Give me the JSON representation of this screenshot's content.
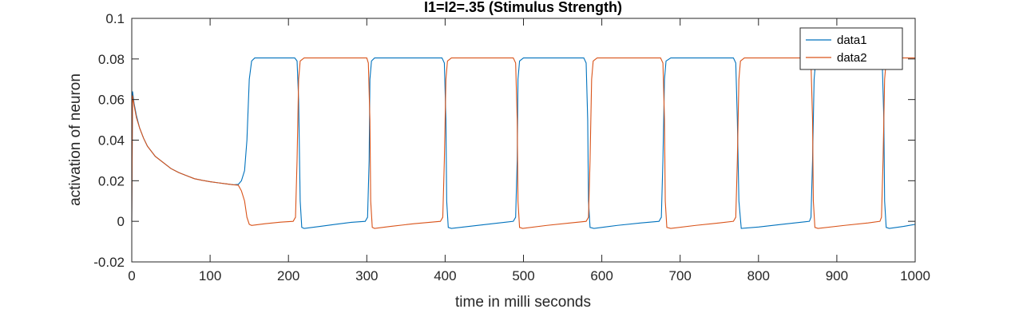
{
  "chart_data": {
    "type": "line",
    "title": "I1=I2=.35 (Stimulus Strength)",
    "xlabel": "time in milli seconds",
    "ylabel": "activation of neuron",
    "xlim": [
      0,
      1000
    ],
    "ylim": [
      -0.02,
      0.1
    ],
    "x_ticks": [
      0,
      100,
      200,
      300,
      400,
      500,
      600,
      700,
      800,
      900,
      1000
    ],
    "y_ticks": [
      -0.02,
      0,
      0.02,
      0.04,
      0.06,
      0.08,
      0.1
    ],
    "x_tick_labels": [
      "0",
      "100",
      "200",
      "300",
      "400",
      "500",
      "600",
      "700",
      "800",
      "900",
      "1000"
    ],
    "y_tick_labels": [
      "-0.02",
      "0",
      "0.02",
      "0.04",
      "0.06",
      "0.08",
      "0.1"
    ],
    "grid": false,
    "legend_position": "top-right",
    "series": [
      {
        "name": "data1",
        "color": "#0072BD",
        "points": [
          [
            0,
            0
          ],
          [
            1,
            0.064
          ],
          [
            3,
            0.058
          ],
          [
            6,
            0.052
          ],
          [
            10,
            0.046
          ],
          [
            15,
            0.041
          ],
          [
            20,
            0.037
          ],
          [
            30,
            0.032
          ],
          [
            40,
            0.029
          ],
          [
            50,
            0.026
          ],
          [
            60,
            0.024
          ],
          [
            70,
            0.0225
          ],
          [
            80,
            0.021
          ],
          [
            90,
            0.0202
          ],
          [
            100,
            0.0195
          ],
          [
            110,
            0.019
          ],
          [
            120,
            0.0185
          ],
          [
            130,
            0.018
          ],
          [
            136,
            0.0182
          ],
          [
            140,
            0.02
          ],
          [
            144,
            0.025
          ],
          [
            147,
            0.04
          ],
          [
            150,
            0.07
          ],
          [
            153,
            0.079
          ],
          [
            157,
            0.0805
          ],
          [
            208,
            0.0805
          ],
          [
            211,
            0.079
          ],
          [
            213,
            0.06
          ],
          [
            215,
            0.01
          ],
          [
            217,
            -0.003
          ],
          [
            220,
            -0.0035
          ],
          [
            240,
            -0.0025
          ],
          [
            260,
            -0.0015
          ],
          [
            280,
            -0.0005
          ],
          [
            298,
            0
          ],
          [
            301,
            0.002
          ],
          [
            303,
            0.03
          ],
          [
            304,
            0.07
          ],
          [
            306,
            0.079
          ],
          [
            310,
            0.0805
          ],
          [
            396,
            0.0805
          ],
          [
            399,
            0.078
          ],
          [
            401,
            0.05
          ],
          [
            402,
            0.01
          ],
          [
            404,
            -0.003
          ],
          [
            408,
            -0.0035
          ],
          [
            430,
            -0.0025
          ],
          [
            460,
            -0.0012
          ],
          [
            487,
            0
          ],
          [
            490,
            0.002
          ],
          [
            492,
            0.03
          ],
          [
            493,
            0.07
          ],
          [
            495,
            0.079
          ],
          [
            500,
            0.0805
          ],
          [
            577,
            0.0805
          ],
          [
            580,
            0.078
          ],
          [
            582,
            0.05
          ],
          [
            583,
            0.01
          ],
          [
            585,
            -0.003
          ],
          [
            590,
            -0.0035
          ],
          [
            620,
            -0.002
          ],
          [
            650,
            -0.0008
          ],
          [
            673,
            0
          ],
          [
            676,
            0.002
          ],
          [
            678,
            0.03
          ],
          [
            680,
            0.07
          ],
          [
            682,
            0.079
          ],
          [
            688,
            0.0805
          ],
          [
            768,
            0.0805
          ],
          [
            771,
            0.078
          ],
          [
            773,
            0.05
          ],
          [
            775,
            0.01
          ],
          [
            778,
            -0.0035
          ],
          [
            800,
            -0.0028
          ],
          [
            830,
            -0.0015
          ],
          [
            860,
            -0.0002
          ],
          [
            865,
            0
          ],
          [
            867,
            0.002
          ],
          [
            869,
            0.03
          ],
          [
            871,
            0.07
          ],
          [
            873,
            0.079
          ],
          [
            880,
            0.0805
          ],
          [
            955,
            0.0805
          ],
          [
            958,
            0.078
          ],
          [
            960,
            0.05
          ],
          [
            961,
            0.01
          ],
          [
            963,
            -0.003
          ],
          [
            967,
            -0.0035
          ],
          [
            985,
            -0.0025
          ],
          [
            1000,
            -0.0015
          ]
        ]
      },
      {
        "name": "data2",
        "color": "#D95319",
        "points": [
          [
            0,
            0
          ],
          [
            1,
            0.062
          ],
          [
            3,
            0.057
          ],
          [
            6,
            0.051
          ],
          [
            10,
            0.046
          ],
          [
            15,
            0.041
          ],
          [
            20,
            0.037
          ],
          [
            30,
            0.032
          ],
          [
            40,
            0.029
          ],
          [
            50,
            0.026
          ],
          [
            60,
            0.024
          ],
          [
            70,
            0.0225
          ],
          [
            80,
            0.021
          ],
          [
            90,
            0.0202
          ],
          [
            100,
            0.0195
          ],
          [
            110,
            0.019
          ],
          [
            120,
            0.0185
          ],
          [
            130,
            0.018
          ],
          [
            136,
            0.0178
          ],
          [
            140,
            0.015
          ],
          [
            144,
            0.01
          ],
          [
            147,
            0.002
          ],
          [
            150,
            -0.0015
          ],
          [
            153,
            -0.002
          ],
          [
            170,
            -0.0012
          ],
          [
            190,
            -0.0004
          ],
          [
            206,
            0
          ],
          [
            209,
            0.002
          ],
          [
            211,
            0.03
          ],
          [
            213,
            0.07
          ],
          [
            215,
            0.079
          ],
          [
            220,
            0.0805
          ],
          [
            300,
            0.0805
          ],
          [
            302,
            0.078
          ],
          [
            304,
            0.05
          ],
          [
            305,
            0.01
          ],
          [
            307,
            -0.003
          ],
          [
            310,
            -0.0035
          ],
          [
            330,
            -0.0025
          ],
          [
            360,
            -0.0012
          ],
          [
            394,
            0
          ],
          [
            397,
            0.002
          ],
          [
            399,
            0.03
          ],
          [
            401,
            0.07
          ],
          [
            403,
            0.079
          ],
          [
            408,
            0.0805
          ],
          [
            487,
            0.0805
          ],
          [
            490,
            0.078
          ],
          [
            492,
            0.05
          ],
          [
            493,
            0.01
          ],
          [
            495,
            -0.003
          ],
          [
            499,
            -0.0035
          ],
          [
            530,
            -0.002
          ],
          [
            560,
            -0.0008
          ],
          [
            580,
            0
          ],
          [
            583,
            0.002
          ],
          [
            585,
            0.03
          ],
          [
            587,
            0.07
          ],
          [
            589,
            0.079
          ],
          [
            594,
            0.0805
          ],
          [
            675,
            0.0805
          ],
          [
            678,
            0.078
          ],
          [
            680,
            0.05
          ],
          [
            681,
            0.01
          ],
          [
            683,
            -0.003
          ],
          [
            688,
            -0.0035
          ],
          [
            720,
            -0.002
          ],
          [
            750,
            -0.0008
          ],
          [
            768,
            0
          ],
          [
            771,
            0.002
          ],
          [
            773,
            0.03
          ],
          [
            775,
            0.07
          ],
          [
            777,
            0.079
          ],
          [
            782,
            0.0805
          ],
          [
            864,
            0.0805
          ],
          [
            867,
            0.078
          ],
          [
            869,
            0.05
          ],
          [
            870,
            0.01
          ],
          [
            872,
            -0.003
          ],
          [
            876,
            -0.0035
          ],
          [
            910,
            -0.002
          ],
          [
            940,
            -0.0008
          ],
          [
            955,
            0
          ],
          [
            957,
            0.002
          ],
          [
            959,
            0.03
          ],
          [
            961,
            0.07
          ],
          [
            963,
            0.079
          ],
          [
            968,
            0.0805
          ],
          [
            1000,
            0.0805
          ]
        ]
      }
    ]
  }
}
